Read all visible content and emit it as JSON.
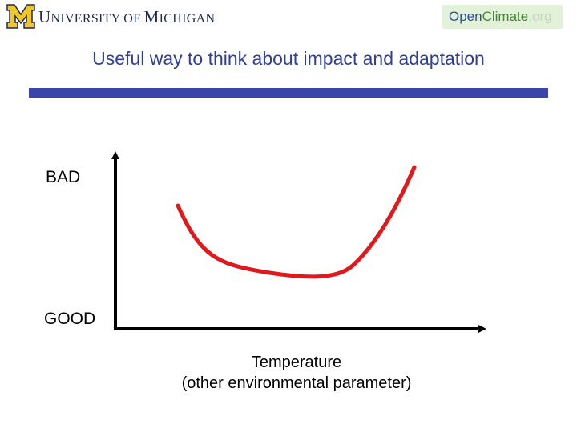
{
  "header": {
    "university_initial": "M",
    "university_name_big1": "U",
    "university_name_small1": "NIVERSITY OF ",
    "university_name_big2": "M",
    "university_name_small2": "ICHIGAN",
    "partner_open": "Open",
    "partner_climate": "Climate",
    "partner_org": ".org"
  },
  "slide": {
    "title": "Useful way to think about impact and adaptation"
  },
  "diagram": {
    "y_top_label": "BAD",
    "y_bottom_label": "GOOD",
    "x_label_line1": "Temperature",
    "x_label_line2": "(other environmental parameter)",
    "curve_color": "#e0191c",
    "title_rule_color": "#3b44a8",
    "um_maize_color": "#f2c624",
    "curve_shape": "U-shaped impact curve: bad at both extremes, good in the middle"
  }
}
